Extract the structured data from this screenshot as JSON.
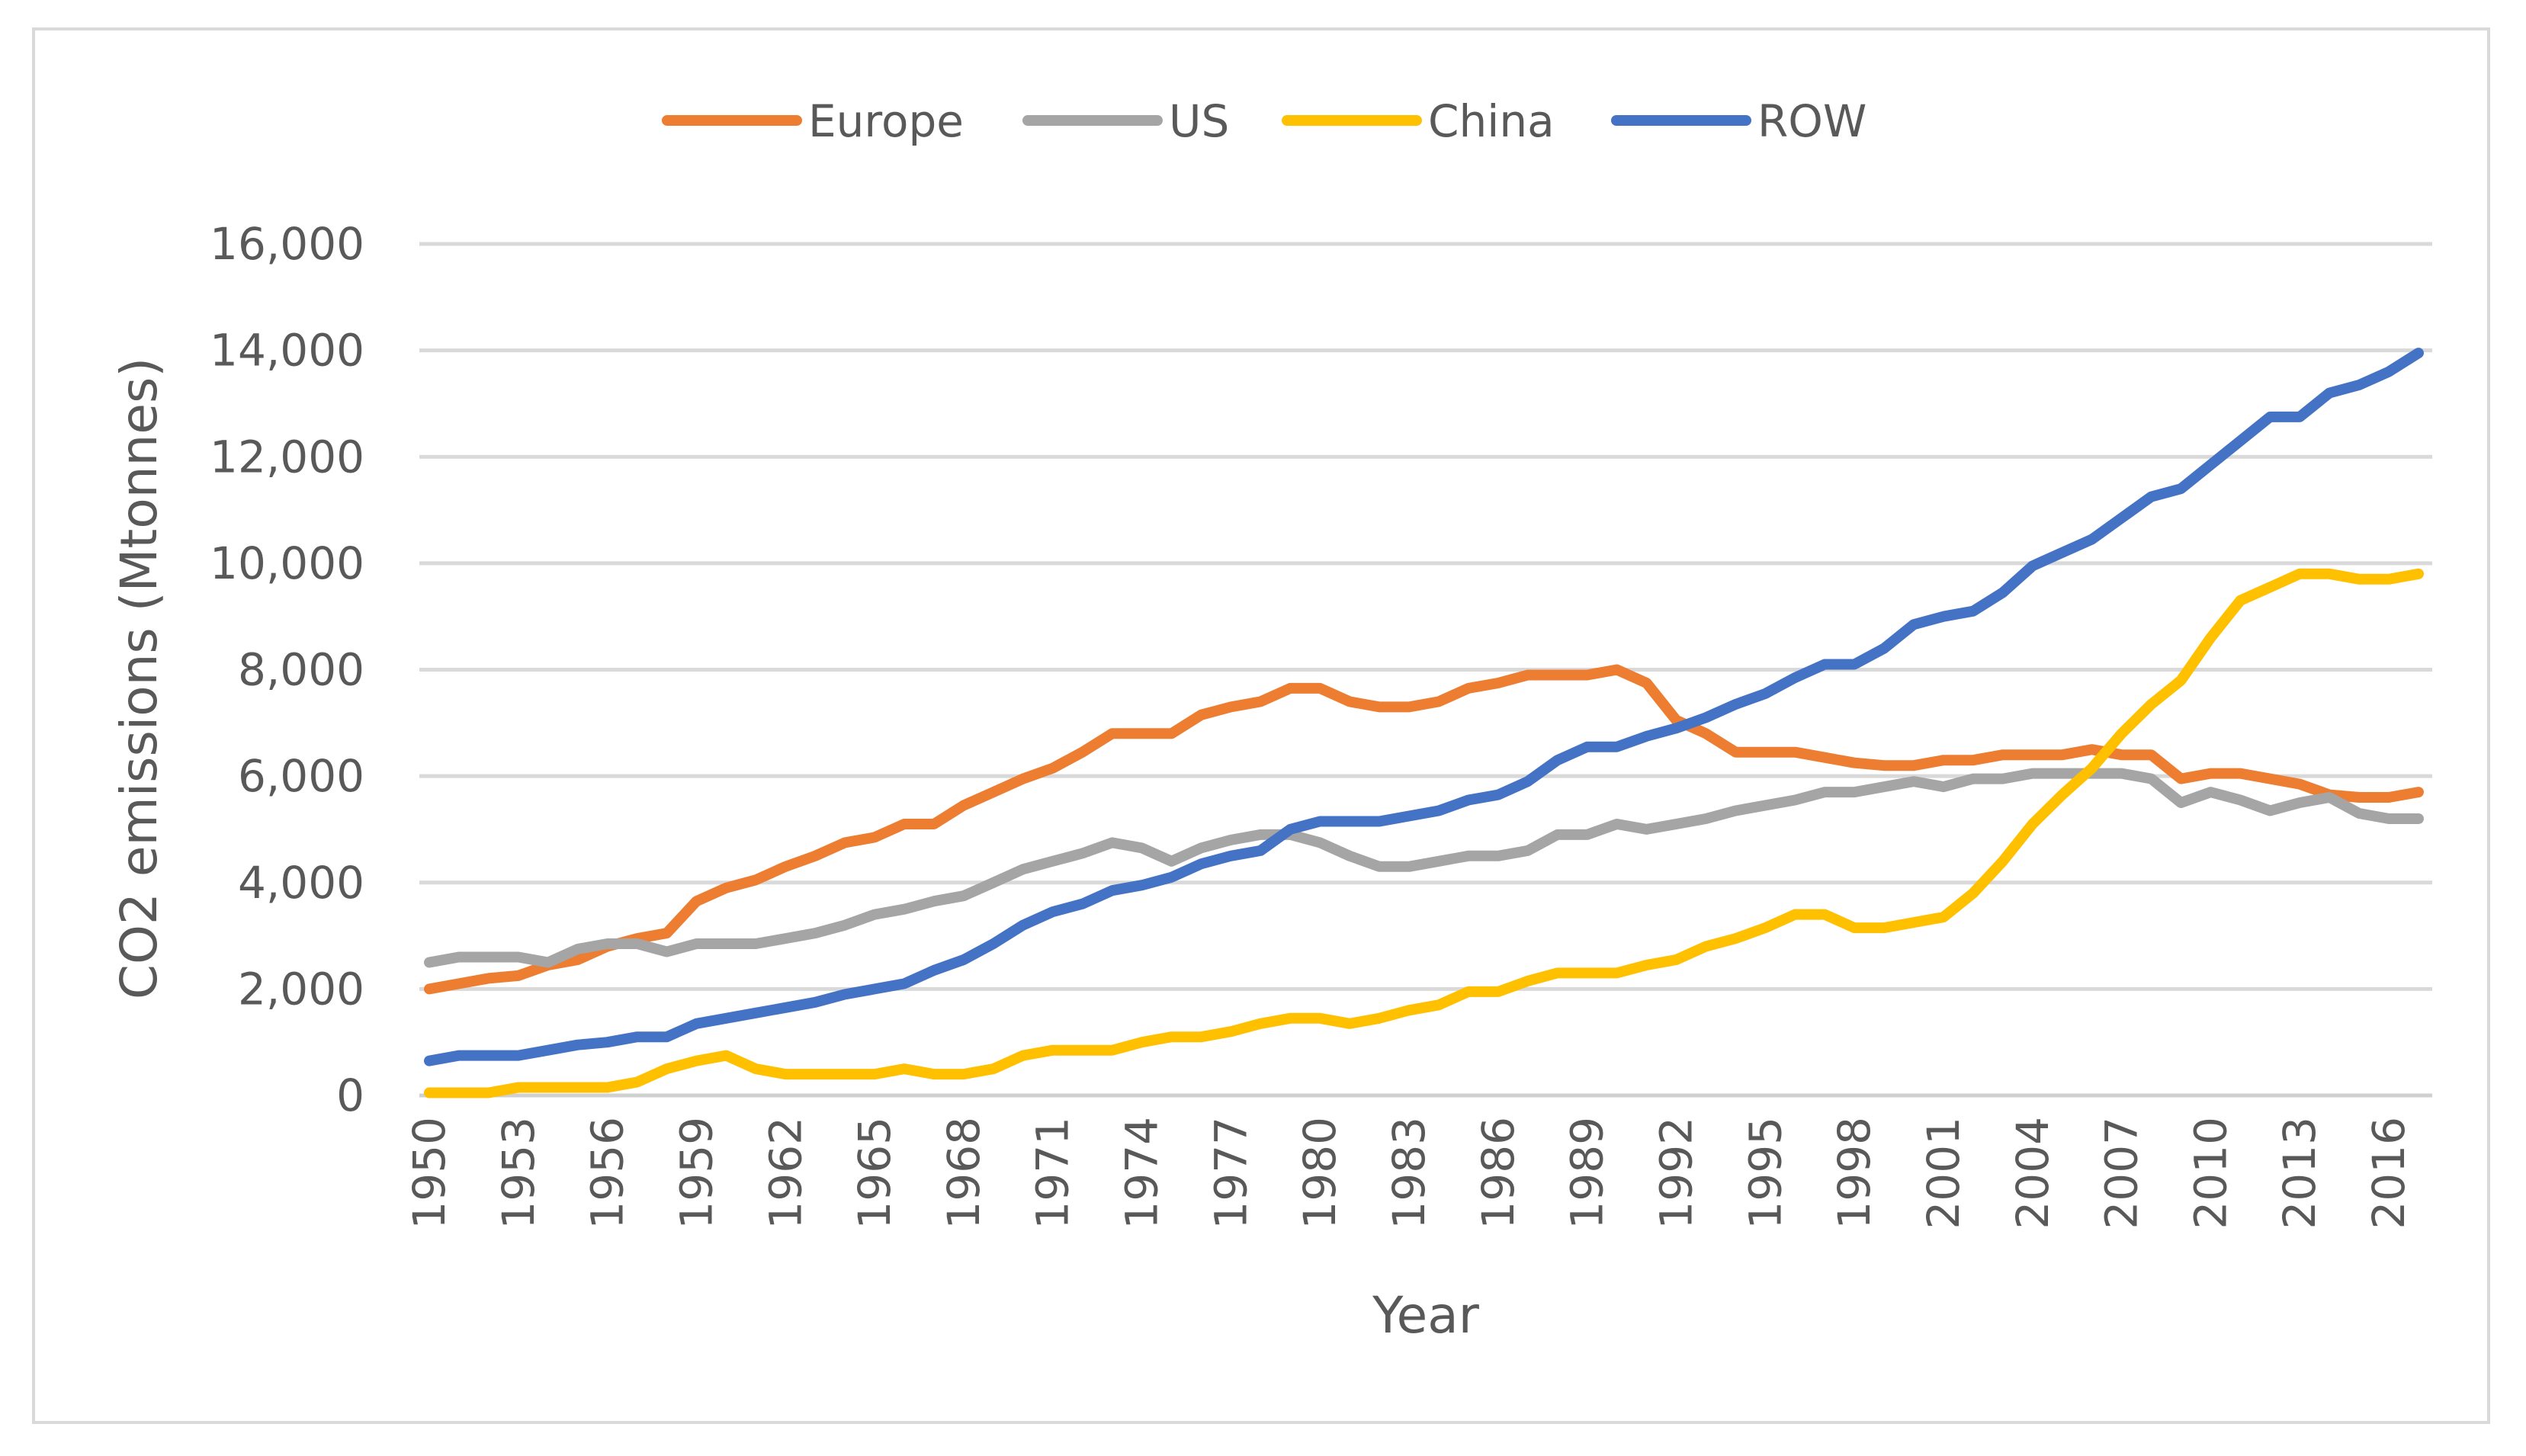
{
  "chart_data": {
    "type": "line",
    "title": "",
    "xlabel": "Year",
    "ylabel": "CO2 emissions (Mtonnes)",
    "ylim": [
      0,
      16000
    ],
    "yticks": [
      0,
      2000,
      4000,
      6000,
      8000,
      10000,
      12000,
      14000,
      16000
    ],
    "ytick_labels": [
      "0",
      "2,000",
      "4,000",
      "6,000",
      "8,000",
      "10,000",
      "12,000",
      "14,000",
      "16,000"
    ],
    "x": [
      1950,
      1951,
      1952,
      1953,
      1954,
      1955,
      1956,
      1957,
      1958,
      1959,
      1960,
      1961,
      1962,
      1963,
      1964,
      1965,
      1966,
      1967,
      1968,
      1969,
      1970,
      1971,
      1972,
      1973,
      1974,
      1975,
      1976,
      1977,
      1978,
      1979,
      1980,
      1981,
      1982,
      1983,
      1984,
      1985,
      1986,
      1987,
      1988,
      1989,
      1990,
      1991,
      1992,
      1993,
      1994,
      1995,
      1996,
      1997,
      1998,
      1999,
      2000,
      2001,
      2002,
      2003,
      2004,
      2005,
      2006,
      2007,
      2008,
      2009,
      2010,
      2011,
      2012,
      2013,
      2014,
      2015,
      2016,
      2017
    ],
    "xticks": [
      1950,
      1953,
      1956,
      1959,
      1962,
      1965,
      1968,
      1971,
      1974,
      1977,
      1980,
      1983,
      1986,
      1989,
      1992,
      1995,
      1998,
      2001,
      2004,
      2007,
      2010,
      2013,
      2016
    ],
    "grid": true,
    "legend_position": "top",
    "series": [
      {
        "name": "Europe",
        "color": "#ed7d31",
        "values": [
          2000,
          2100,
          2200,
          2250,
          2450,
          2550,
          2800,
          2950,
          3050,
          3650,
          3900,
          4050,
          4300,
          4500,
          4750,
          4850,
          5100,
          5100,
          5450,
          5700,
          5950,
          6150,
          6450,
          6800,
          6800,
          6800,
          7150,
          7300,
          7400,
          7650,
          7650,
          7400,
          7300,
          7300,
          7400,
          7650,
          7750,
          7900,
          7900,
          7900,
          8000,
          7750,
          7050,
          6800,
          6450,
          6450,
          6450,
          6350,
          6250,
          6200,
          6200,
          6300,
          6300,
          6400,
          6400,
          6400,
          6500,
          6400,
          6400,
          5950,
          6050,
          6050,
          5950,
          5850,
          5650,
          5600,
          5600,
          5700
        ]
      },
      {
        "name": "US",
        "color": "#a5a5a5",
        "values": [
          2500,
          2600,
          2600,
          2600,
          2500,
          2750,
          2850,
          2850,
          2700,
          2850,
          2850,
          2850,
          2950,
          3050,
          3200,
          3400,
          3500,
          3650,
          3750,
          4000,
          4250,
          4400,
          4550,
          4750,
          4650,
          4400,
          4650,
          4800,
          4900,
          4900,
          4750,
          4500,
          4300,
          4300,
          4400,
          4500,
          4500,
          4600,
          4900,
          4900,
          5100,
          5000,
          5100,
          5200,
          5350,
          5450,
          5550,
          5700,
          5700,
          5800,
          5900,
          5800,
          5950,
          5950,
          6050,
          6050,
          6050,
          6050,
          5950,
          5500,
          5700,
          5550,
          5350,
          5500,
          5600,
          5300,
          5200,
          5200
        ]
      },
      {
        "name": "China",
        "color": "#ffc000",
        "values": [
          50,
          50,
          50,
          150,
          150,
          150,
          150,
          250,
          500,
          650,
          750,
          500,
          400,
          400,
          400,
          400,
          500,
          400,
          400,
          500,
          750,
          850,
          850,
          850,
          1000,
          1100,
          1100,
          1200,
          1350,
          1450,
          1450,
          1350,
          1450,
          1600,
          1700,
          1950,
          1950,
          2150,
          2300,
          2300,
          2300,
          2450,
          2550,
          2800,
          2950,
          3150,
          3400,
          3400,
          3150,
          3150,
          3250,
          3350,
          3800,
          4400,
          5100,
          5650,
          6150,
          6800,
          7350,
          7800,
          8600,
          9300,
          9550,
          9800,
          9800,
          9700,
          9700,
          9800
        ]
      },
      {
        "name": "ROW",
        "color": "#4472c4",
        "values": [
          650,
          750,
          750,
          750,
          850,
          950,
          1000,
          1100,
          1100,
          1350,
          1450,
          1550,
          1650,
          1750,
          1900,
          2000,
          2100,
          2350,
          2550,
          2850,
          3200,
          3450,
          3600,
          3850,
          3950,
          4100,
          4350,
          4500,
          4600,
          5000,
          5150,
          5150,
          5150,
          5250,
          5350,
          5550,
          5650,
          5900,
          6300,
          6550,
          6550,
          6750,
          6900,
          7100,
          7350,
          7550,
          7850,
          8100,
          8100,
          8400,
          8850,
          9000,
          9100,
          9450,
          9950,
          10200,
          10450,
          10850,
          11250,
          11400,
          11850,
          12300,
          12750,
          12750,
          13200,
          13350,
          13600,
          13950
        ]
      }
    ]
  }
}
